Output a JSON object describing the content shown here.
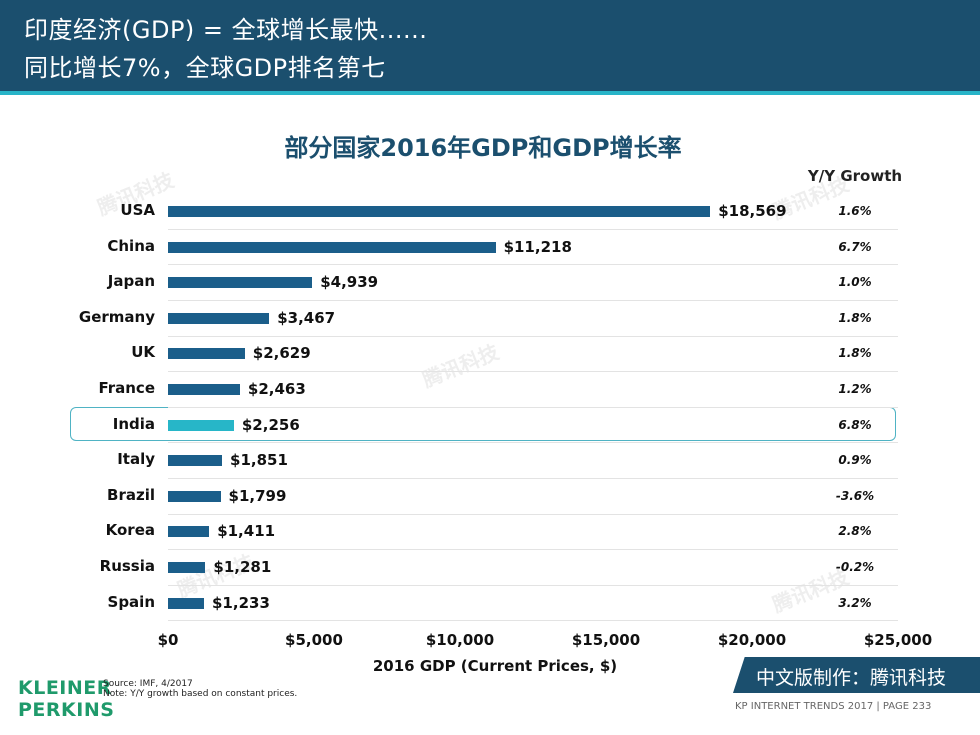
{
  "header": {
    "line1": "印度经济(GDP) = 全球增长最快......",
    "line2": "同比增长7%，全球GDP排名第七"
  },
  "chart_data": {
    "type": "bar",
    "orientation": "horizontal",
    "title": "部分国家2016年GDP和GDP增长率",
    "categories": [
      "USA",
      "China",
      "Japan",
      "Germany",
      "UK",
      "France",
      "India",
      "Italy",
      "Brazil",
      "Korea",
      "Russia",
      "Spain"
    ],
    "values": [
      18569,
      11218,
      4939,
      3467,
      2629,
      2463,
      2256,
      1851,
      1799,
      1411,
      1281,
      1233
    ],
    "value_labels": [
      "$18,569",
      "$11,218",
      "$4,939",
      "$3,467",
      "$2,629",
      "$2,463",
      "$2,256",
      "$1,851",
      "$1,799",
      "$1,411",
      "$1,281",
      "$1,233"
    ],
    "growth_header": "Y/Y Growth",
    "growth": [
      "1.6%",
      "6.7%",
      "1.0%",
      "1.8%",
      "1.8%",
      "1.2%",
      "6.8%",
      "0.9%",
      "-3.6%",
      "2.8%",
      "-0.2%",
      "3.2%"
    ],
    "highlight": "India",
    "xlabel": "2016 GDP (Current Prices, $)",
    "ylabel": "",
    "xlim": [
      0,
      25000
    ],
    "xticks": [
      0,
      5000,
      10000,
      15000,
      20000,
      25000
    ],
    "xtick_labels": [
      "$0",
      "$5,000",
      "$10,000",
      "$15,000",
      "$20,000",
      "$25,000"
    ],
    "grid": false,
    "colors": {
      "bar": "#1b5e8a",
      "highlight": "#27b6c8"
    }
  },
  "logo": {
    "line1": "KLEINER",
    "line2": "PERKINS"
  },
  "source": {
    "line1": "Source: IMF, 4/2017",
    "line2": "Note: Y/Y growth based on constant prices."
  },
  "banner_cn": "中文版制作：腾讯科技",
  "footer": "KP INTERNET TRENDS 2017   |   PAGE 233",
  "watermark": "腾讯科技",
  "colors": {
    "header_bg": "#1b4f6e",
    "accent": "#28b4c8"
  }
}
